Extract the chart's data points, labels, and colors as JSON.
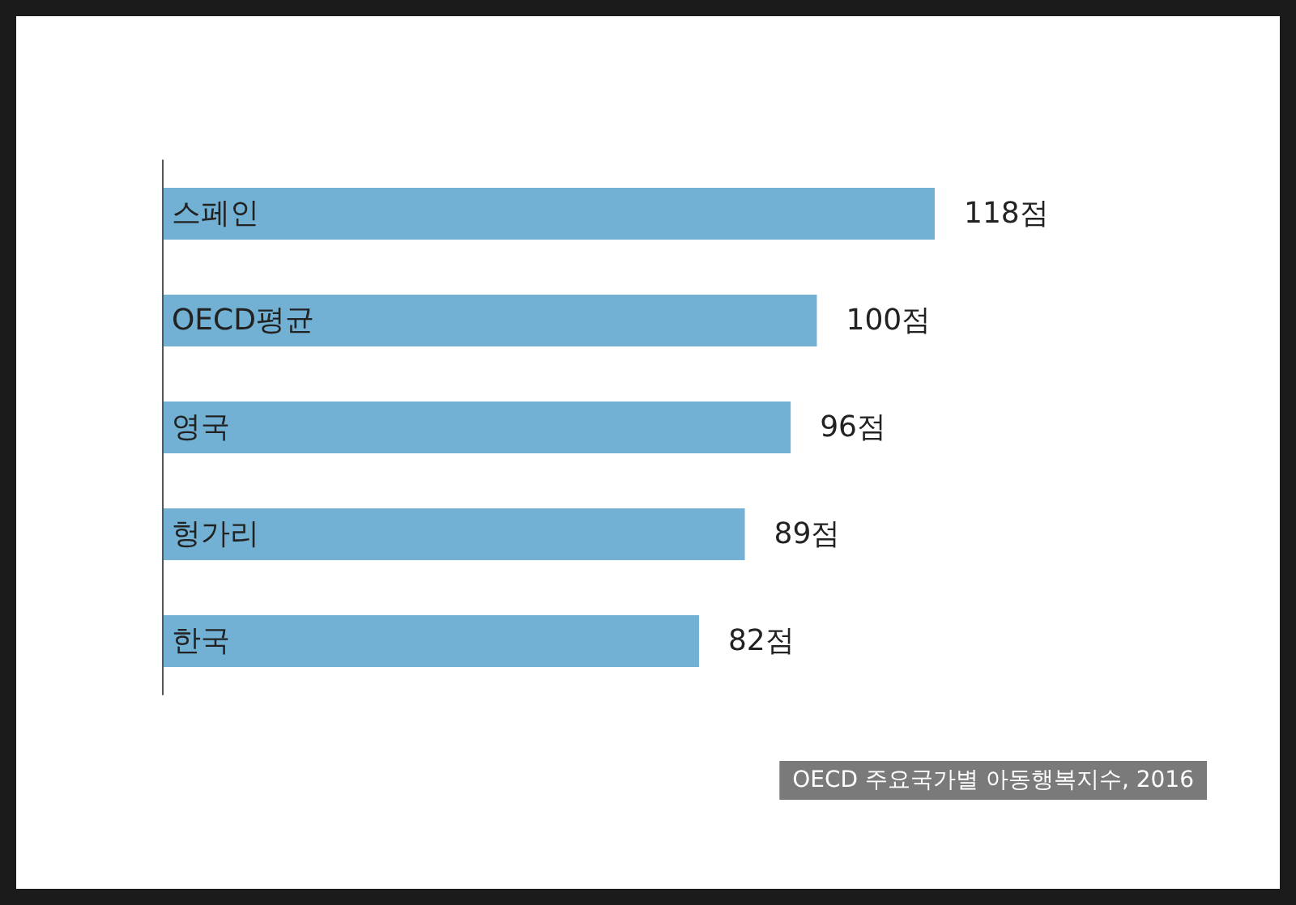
{
  "chart_data": {
    "type": "bar",
    "orientation": "horizontal",
    "categories": [
      "스페인",
      "OECD평균",
      "영국",
      "헝가리",
      "한국"
    ],
    "values": [
      118,
      100,
      96,
      89,
      82
    ],
    "value_labels": [
      "118점",
      "100점",
      "96점",
      "89점",
      "82점"
    ],
    "color": "#72b1d3",
    "annotations": [
      "OECD 주요국가별 아동행복지수, 2016"
    ]
  }
}
